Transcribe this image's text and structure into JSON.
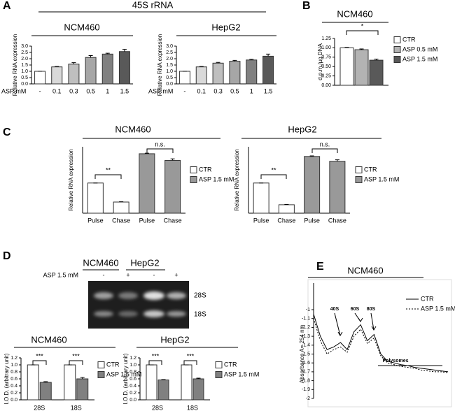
{
  "header": "45S rRNA",
  "panels": [
    "A",
    "B",
    "C",
    "D",
    "E"
  ],
  "gel": {
    "lines": [
      "NCM460",
      "HepG2"
    ],
    "treatment": "ASP 1.5 mM",
    "lanes": [
      "-",
      "+",
      "-",
      "+"
    ],
    "bands": [
      "28S",
      "18S"
    ]
  },
  "chart_data": [
    {
      "type": "bar",
      "title": "NCM460",
      "ylabel": "Relative RNA expression",
      "xlabel": "ASP mM",
      "categories": [
        "-",
        "0.1",
        "0.3",
        "0.5",
        "1",
        "1.5"
      ],
      "values": [
        1.0,
        1.35,
        1.57,
        2.1,
        2.37,
        2.57
      ],
      "errors": [
        0,
        0.03,
        0.12,
        0.15,
        0.07,
        0.17
      ],
      "colors": [
        "#ffffff",
        "#d9d9d9",
        "#bfbfbf",
        "#a6a6a6",
        "#808080",
        "#595959"
      ],
      "ylim": [
        0,
        3
      ],
      "yticks": [
        {
          "value": 0,
          "label": "0.0"
        },
        {
          "value": 0.5,
          "label": "0.5"
        },
        {
          "value": 1,
          "label": "1.0"
        },
        {
          "value": 1.5,
          "label": "1.5"
        },
        {
          "value": 2,
          "label": "2.0"
        },
        {
          "value": 2.5,
          "label": "2.5"
        },
        {
          "value": 3,
          "label": "3.0"
        }
      ]
    },
    {
      "type": "bar",
      "title": "HepG2",
      "ylabel": "Relative RNA expression",
      "xlabel": "ASP mM",
      "categories": [
        "-",
        "0.1",
        "0.3",
        "0.5",
        "1",
        "1.5"
      ],
      "values": [
        1.0,
        1.35,
        1.65,
        1.8,
        1.9,
        2.2
      ],
      "errors": [
        0,
        0.03,
        0.06,
        0.07,
        0.05,
        0.17
      ],
      "colors": [
        "#ffffff",
        "#d9d9d9",
        "#bfbfbf",
        "#a6a6a6",
        "#808080",
        "#595959"
      ],
      "ylim": [
        0,
        3
      ],
      "yticks": [
        {
          "value": 0,
          "label": "0.0"
        },
        {
          "value": 0.5,
          "label": "0.5"
        },
        {
          "value": 1,
          "label": "1.0"
        },
        {
          "value": 1.5,
          "label": "1.5"
        },
        {
          "value": 2,
          "label": "2.0"
        },
        {
          "value": 2.5,
          "label": "2.5"
        },
        {
          "value": 3,
          "label": "3.0"
        }
      ]
    },
    {
      "type": "bar",
      "title": "NCM460",
      "ylabel": "d.p.m./µg DNA",
      "categories": [
        null
      ],
      "series": [
        {
          "name": "CTR",
          "color": "#ffffff",
          "values": [
            1.0
          ],
          "errors": [
            0.01
          ]
        },
        {
          "name": "ASP 0.5 mM",
          "color": "#b3b3b3",
          "values": [
            0.95
          ],
          "errors": [
            0.02
          ]
        },
        {
          "name": "ASP 1.5 mM",
          "color": "#595959",
          "values": [
            0.67
          ],
          "errors": [
            0.03
          ]
        }
      ],
      "annotations": [
        "*"
      ],
      "ylim": [
        0,
        1.25
      ],
      "yticks": [
        {
          "value": 0,
          "label": "0.00"
        },
        {
          "value": 0.25,
          "label": "0.25"
        },
        {
          "value": 0.5,
          "label": "0.50"
        },
        {
          "value": 0.75,
          "label": "0.75"
        },
        {
          "value": 1,
          "label": "1.00"
        },
        {
          "value": 1.25,
          "label": "1.25"
        }
      ]
    },
    {
      "type": "bar",
      "title": "NCM460",
      "ylabel": "Relative RNA expression",
      "categories": [
        "Pulse",
        "Chase",
        "Pulse",
        "Chase"
      ],
      "series": [
        {
          "name": "CTR",
          "color": "#ffffff",
          "values": [
            1.0,
            0.37,
            null,
            null
          ],
          "errors": [
            0,
            0.01,
            null,
            null
          ]
        },
        {
          "name": "ASP 1.5 mM",
          "color": "#999999",
          "values": [
            null,
            null,
            1.97,
            1.75
          ],
          "errors": [
            null,
            null,
            0.02,
            0.05
          ]
        }
      ],
      "annotations": [
        "**",
        "n.s."
      ],
      "ylim": [
        0,
        2.2
      ]
    },
    {
      "type": "bar",
      "title": "HepG2",
      "ylabel": "Relative RNA expression",
      "categories": [
        "Pulse",
        "Chase",
        "Pulse",
        "Chase"
      ],
      "series": [
        {
          "name": "CTR",
          "color": "#ffffff",
          "values": [
            1.0,
            0.28,
            null,
            null
          ],
          "errors": [
            0,
            0.01,
            null,
            null
          ]
        },
        {
          "name": "ASP 1.5 mM",
          "color": "#999999",
          "values": [
            null,
            null,
            1.88,
            1.72
          ],
          "errors": [
            null,
            null,
            0.02,
            0.05
          ]
        }
      ],
      "annotations": [
        "**",
        "n.s."
      ],
      "ylim": [
        0,
        2.2
      ]
    },
    {
      "type": "bar",
      "title": "NCM460",
      "ylabel": "I.O.D. (arbitrary unit)",
      "categories": [
        "28S",
        "18S"
      ],
      "series": [
        {
          "name": "CTR",
          "color": "#ffffff",
          "values": [
            1.0,
            1.0
          ],
          "errors": [
            0,
            0
          ]
        },
        {
          "name": "ASP 1.5 mM",
          "color": "#808080",
          "values": [
            0.5,
            0.6
          ],
          "errors": [
            0.02,
            0.04
          ]
        }
      ],
      "annotations": [
        "***",
        "***"
      ],
      "ylim": [
        0,
        1.2
      ],
      "yticks": [
        {
          "value": 0,
          "label": "0.0"
        },
        {
          "value": 0.2,
          "label": "0.2"
        },
        {
          "value": 0.4,
          "label": "0.4"
        },
        {
          "value": 0.6,
          "label": "0.6"
        },
        {
          "value": 0.8,
          "label": "0.8"
        },
        {
          "value": 1,
          "label": "1.0"
        },
        {
          "value": 1.2,
          "label": "1.2"
        }
      ]
    },
    {
      "type": "bar",
      "title": "HepG2",
      "ylabel": "I.O.D. (arbitrary unit)",
      "categories": [
        "28S",
        "18S"
      ],
      "series": [
        {
          "name": "CTR",
          "color": "#ffffff",
          "values": [
            1.0,
            1.0
          ],
          "errors": [
            0,
            0
          ]
        },
        {
          "name": "ASP 1.5 mM",
          "color": "#808080",
          "values": [
            0.57,
            0.6
          ],
          "errors": [
            0.01,
            0.02
          ]
        }
      ],
      "annotations": [
        "***",
        "***"
      ],
      "ylim": [
        0,
        1.2
      ],
      "yticks": [
        {
          "value": 0,
          "label": "0.0"
        },
        {
          "value": 0.2,
          "label": "0.2"
        },
        {
          "value": 0.4,
          "label": "0.4"
        },
        {
          "value": 0.6,
          "label": "0.6"
        },
        {
          "value": 0.8,
          "label": "0.8"
        },
        {
          "value": 1,
          "label": "1.0"
        },
        {
          "value": 1.2,
          "label": "1.2"
        }
      ]
    },
    {
      "type": "line",
      "title": "NCM460",
      "ylabel": "Absorbance A= 254 nm",
      "x": [
        0,
        1,
        2,
        3,
        4,
        5,
        6,
        7,
        8,
        9,
        10,
        11,
        12,
        13,
        14,
        15,
        16,
        17,
        18,
        19,
        20
      ],
      "series": [
        {
          "name": "CTR",
          "color": "#000000",
          "dash": false,
          "values": [
            -1.05,
            -1.3,
            -1.45,
            -1.42,
            -1.37,
            -1.45,
            -1.25,
            -1.17,
            -1.35,
            -1.28,
            -1.5,
            -1.58,
            -1.6,
            -1.62,
            -1.63,
            -1.65,
            -1.66,
            -1.67,
            -1.68,
            -1.69,
            -1.7
          ]
        },
        {
          "name": "ASP 1.5 mM",
          "color": "#000000",
          "dash": true,
          "values": [
            -1.1,
            -1.35,
            -1.5,
            -1.45,
            -1.42,
            -1.48,
            -1.3,
            -1.22,
            -1.38,
            -1.32,
            -1.52,
            -1.6,
            -1.62,
            -1.64,
            -1.65,
            -1.66,
            -1.68,
            -1.69,
            -1.7,
            -1.7,
            -1.71
          ]
        }
      ],
      "annotations": [
        "40S",
        "60S",
        "80S",
        "Polysomes"
      ],
      "xlim": [
        0,
        20
      ],
      "ylim": [
        -2,
        -1
      ],
      "yticks": [
        -1,
        -1.1,
        -1.2,
        -1.3,
        -1.4,
        -1.5,
        -1.6,
        -1.7,
        -1.8,
        -1.9,
        -2
      ]
    }
  ]
}
